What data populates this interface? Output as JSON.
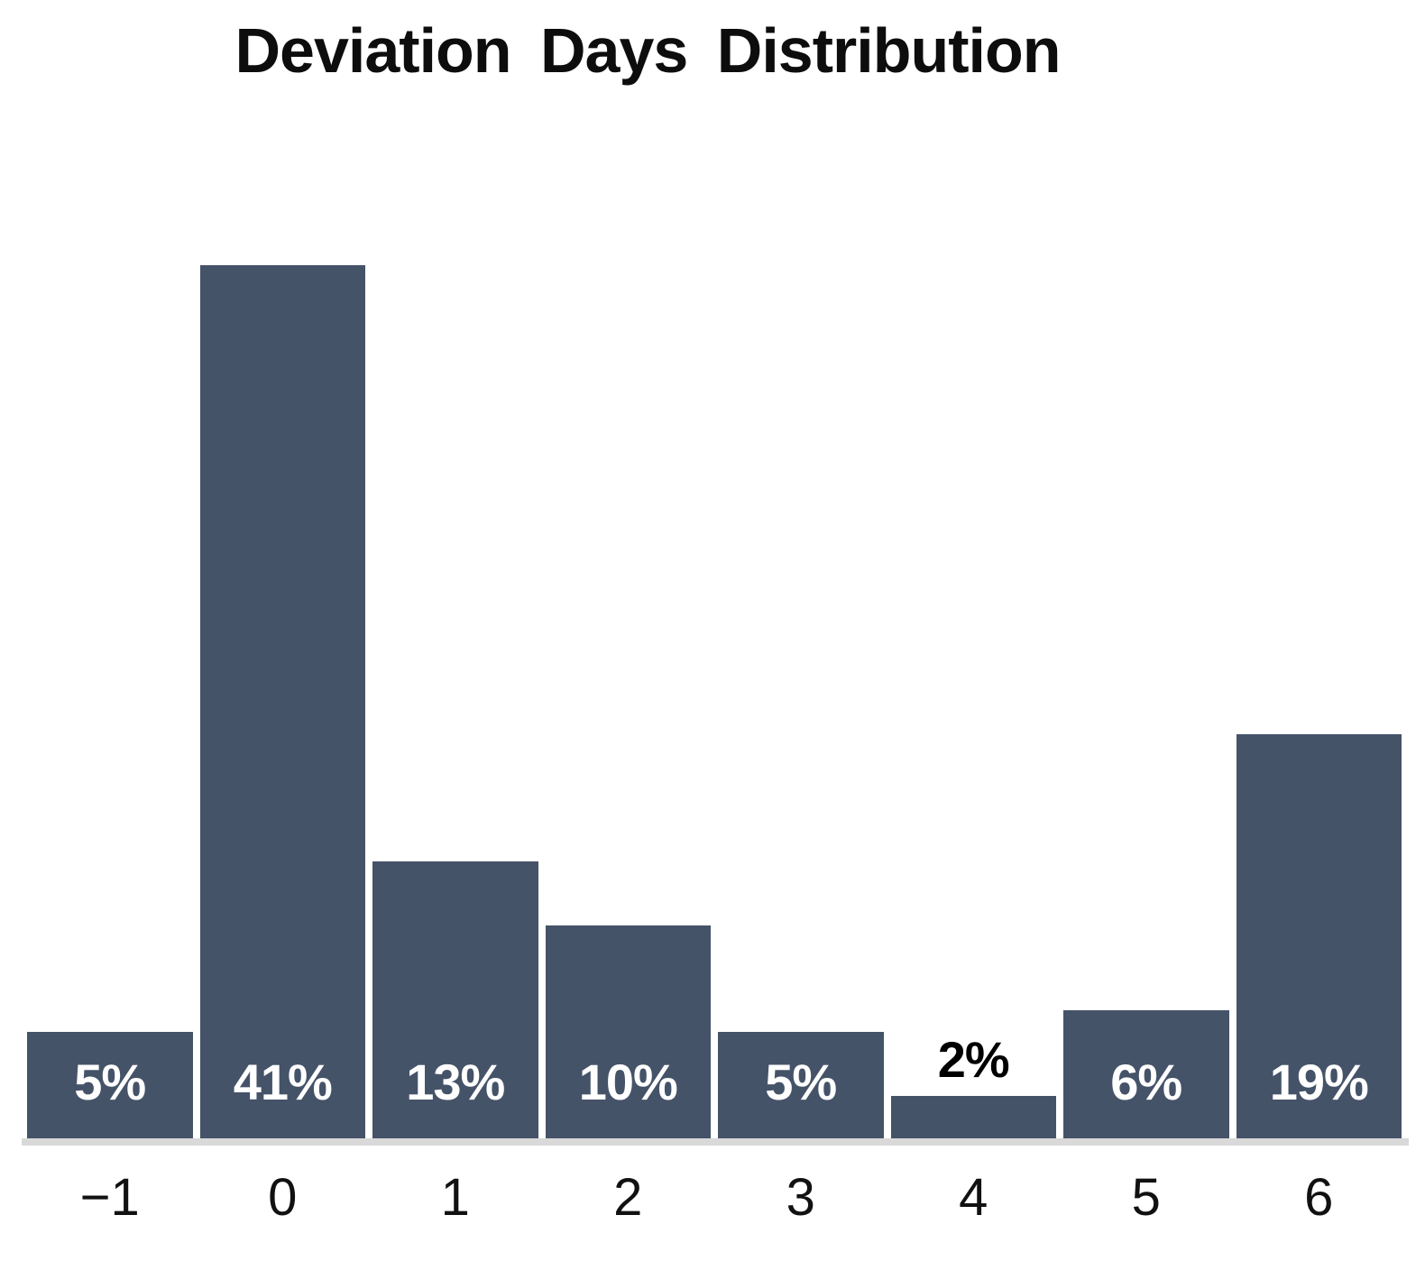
{
  "chart_data": {
    "type": "bar",
    "title": "Deviation Days Distribution",
    "categories": [
      "−1",
      "0",
      "1",
      "2",
      "3",
      "4",
      "5",
      "6"
    ],
    "values": [
      5,
      41,
      13,
      10,
      5,
      2,
      6,
      19
    ],
    "value_labels": [
      "5%",
      "41%",
      "13%",
      "10%",
      "5%",
      "2%",
      "6%",
      "19%"
    ],
    "xlabel": "",
    "ylabel": "",
    "ylim": [
      0,
      42
    ],
    "grid": false,
    "legend": false,
    "bar_color": "#455369",
    "inside_label_color": "#ffffff",
    "outside_label_color": "#000000",
    "axis_line_color": "#d9d9d9",
    "title_color": "#0d0d0d",
    "tick_label_color": "#111111"
  }
}
